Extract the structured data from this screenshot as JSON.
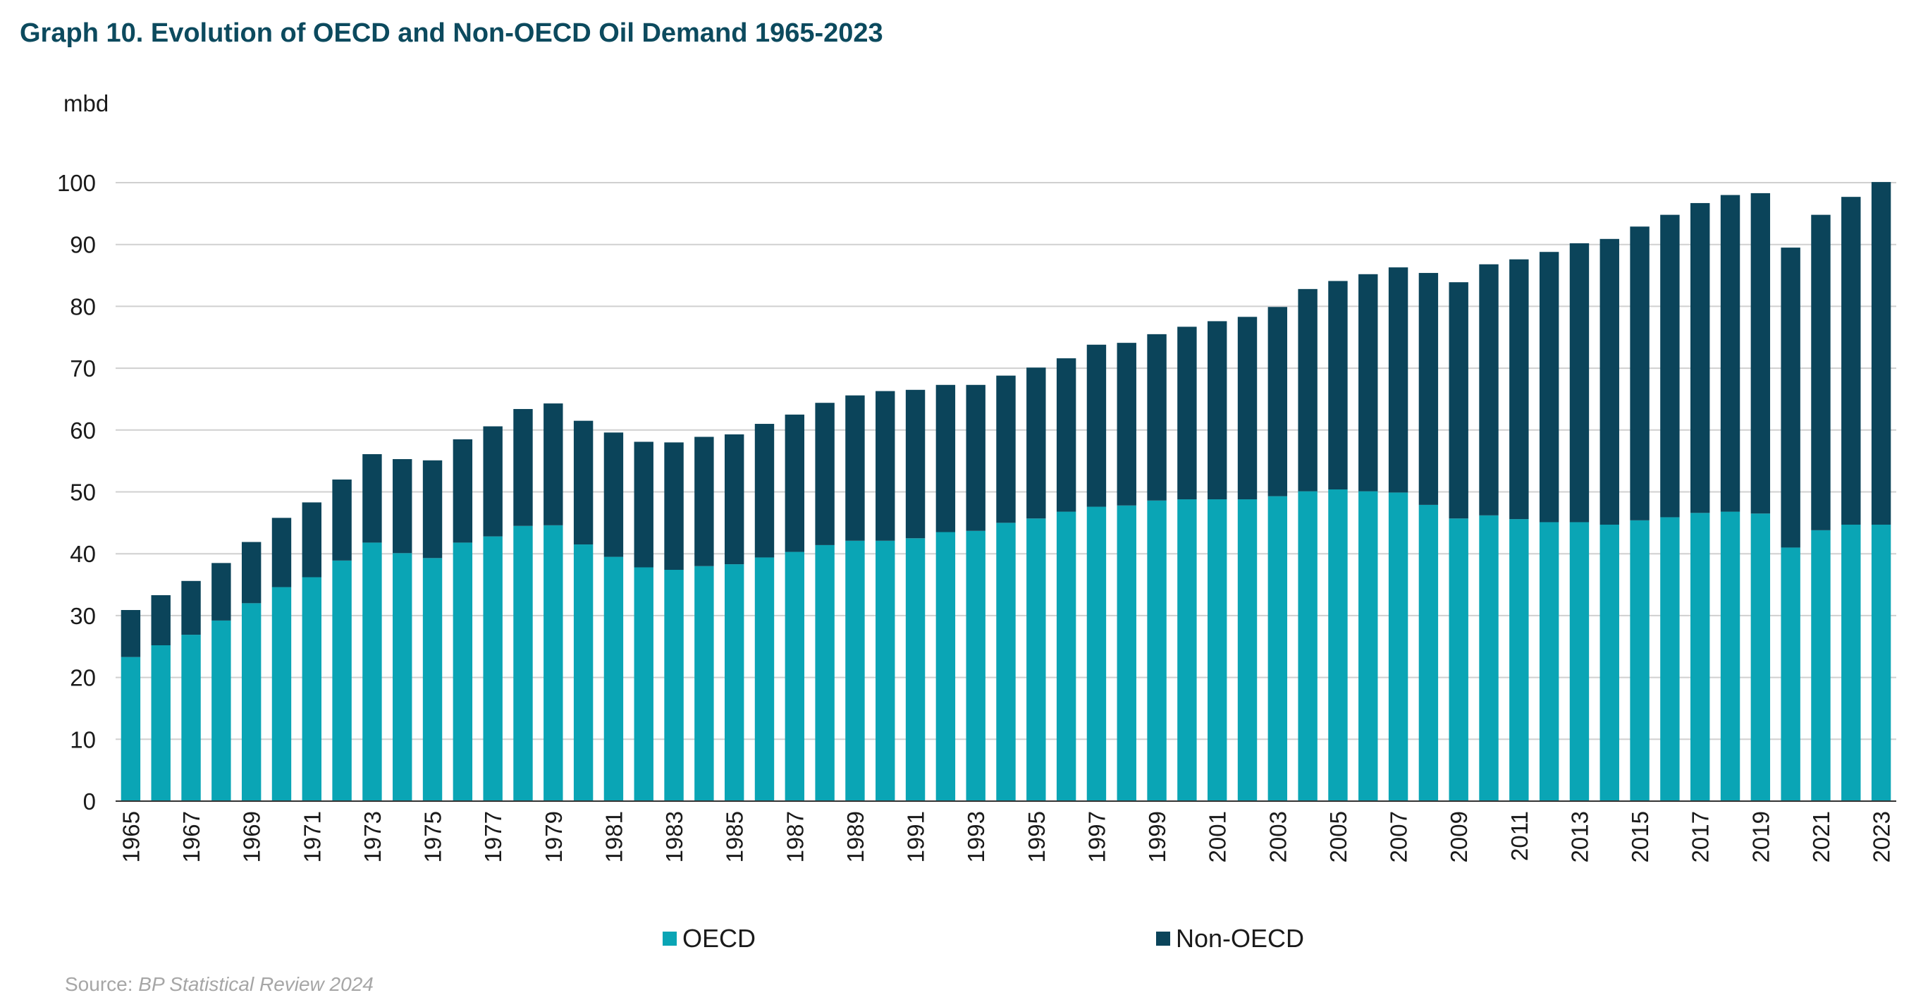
{
  "title": "Graph 10. Evolution of OECD and Non-OECD Oil Demand 1965-2023",
  "source": {
    "prefix": "Source:",
    "name": "BP Statistical Review 2024"
  },
  "colors": {
    "oecd": "#0aa5b5",
    "non_oecd": "#0b445a",
    "grid": "#d0d0d0",
    "axis": "#333333"
  },
  "chart_data": {
    "type": "bar",
    "stacked": true,
    "title": "Graph 10. Evolution of OECD and Non-OECD Oil Demand 1965-2023",
    "ylabel": "mbd",
    "xlabel": "",
    "ylim": [
      0,
      100
    ],
    "yticks": [
      0,
      10,
      20,
      30,
      40,
      50,
      60,
      70,
      80,
      90,
      100
    ],
    "grid": true,
    "legend_position": "bottom",
    "categories": [
      "1965",
      "1966",
      "1967",
      "1968",
      "1969",
      "1970",
      "1971",
      "1972",
      "1973",
      "1974",
      "1975",
      "1976",
      "1977",
      "1978",
      "1979",
      "1980",
      "1981",
      "1982",
      "1983",
      "1984",
      "1985",
      "1986",
      "1987",
      "1988",
      "1989",
      "1990",
      "1991",
      "1992",
      "1993",
      "1994",
      "1995",
      "1996",
      "1997",
      "1998",
      "1999",
      "2000",
      "2001",
      "2002",
      "2003",
      "2004",
      "2005",
      "2006",
      "2007",
      "2008",
      "2009",
      "2010",
      "2011",
      "2012",
      "2013",
      "2014",
      "2015",
      "2016",
      "2017",
      "2018",
      "2019",
      "2020",
      "2021",
      "2022",
      "2023"
    ],
    "x_tick_labels": [
      "1965",
      "1967",
      "1969",
      "1971",
      "1973",
      "1975",
      "1977",
      "1979",
      "1981",
      "1983",
      "1985",
      "1987",
      "1989",
      "1991",
      "1993",
      "1995",
      "1997",
      "1999",
      "2001",
      "2003",
      "2005",
      "2007",
      "2009",
      "2011",
      "2013",
      "2015",
      "2017",
      "2019",
      "2021",
      "2023"
    ],
    "series": [
      {
        "name": "OECD",
        "values": [
          23.3,
          25.2,
          26.9,
          29.2,
          32.0,
          34.6,
          36.2,
          38.9,
          41.8,
          40.1,
          39.3,
          41.8,
          42.8,
          44.5,
          44.6,
          41.5,
          39.5,
          37.8,
          37.4,
          38.0,
          38.3,
          39.4,
          40.3,
          41.4,
          42.1,
          42.1,
          42.5,
          43.5,
          43.7,
          45.0,
          45.7,
          46.8,
          47.6,
          47.8,
          48.6,
          48.8,
          48.8,
          48.8,
          49.3,
          50.1,
          50.4,
          50.1,
          49.9,
          47.9,
          45.7,
          46.2,
          45.6,
          45.1,
          45.1,
          44.7,
          45.4,
          45.9,
          46.6,
          46.8,
          46.5,
          41.0,
          43.8,
          44.7,
          44.7
        ]
      },
      {
        "name": "Non-OECD",
        "values": [
          7.6,
          8.1,
          8.7,
          9.3,
          9.9,
          11.2,
          12.1,
          13.1,
          14.3,
          15.2,
          15.8,
          16.7,
          17.8,
          18.9,
          19.7,
          20.0,
          20.1,
          20.3,
          20.6,
          20.9,
          21.0,
          21.6,
          22.2,
          23.0,
          23.5,
          24.2,
          24.0,
          23.8,
          23.6,
          23.8,
          24.4,
          24.8,
          26.2,
          26.3,
          26.9,
          27.9,
          28.8,
          29.5,
          30.6,
          32.7,
          33.7,
          35.1,
          36.4,
          37.5,
          38.2,
          40.6,
          42.0,
          43.7,
          45.1,
          46.2,
          47.5,
          48.9,
          50.1,
          51.2,
          51.8,
          48.5,
          51.0,
          53.0,
          55.4
        ]
      }
    ]
  }
}
